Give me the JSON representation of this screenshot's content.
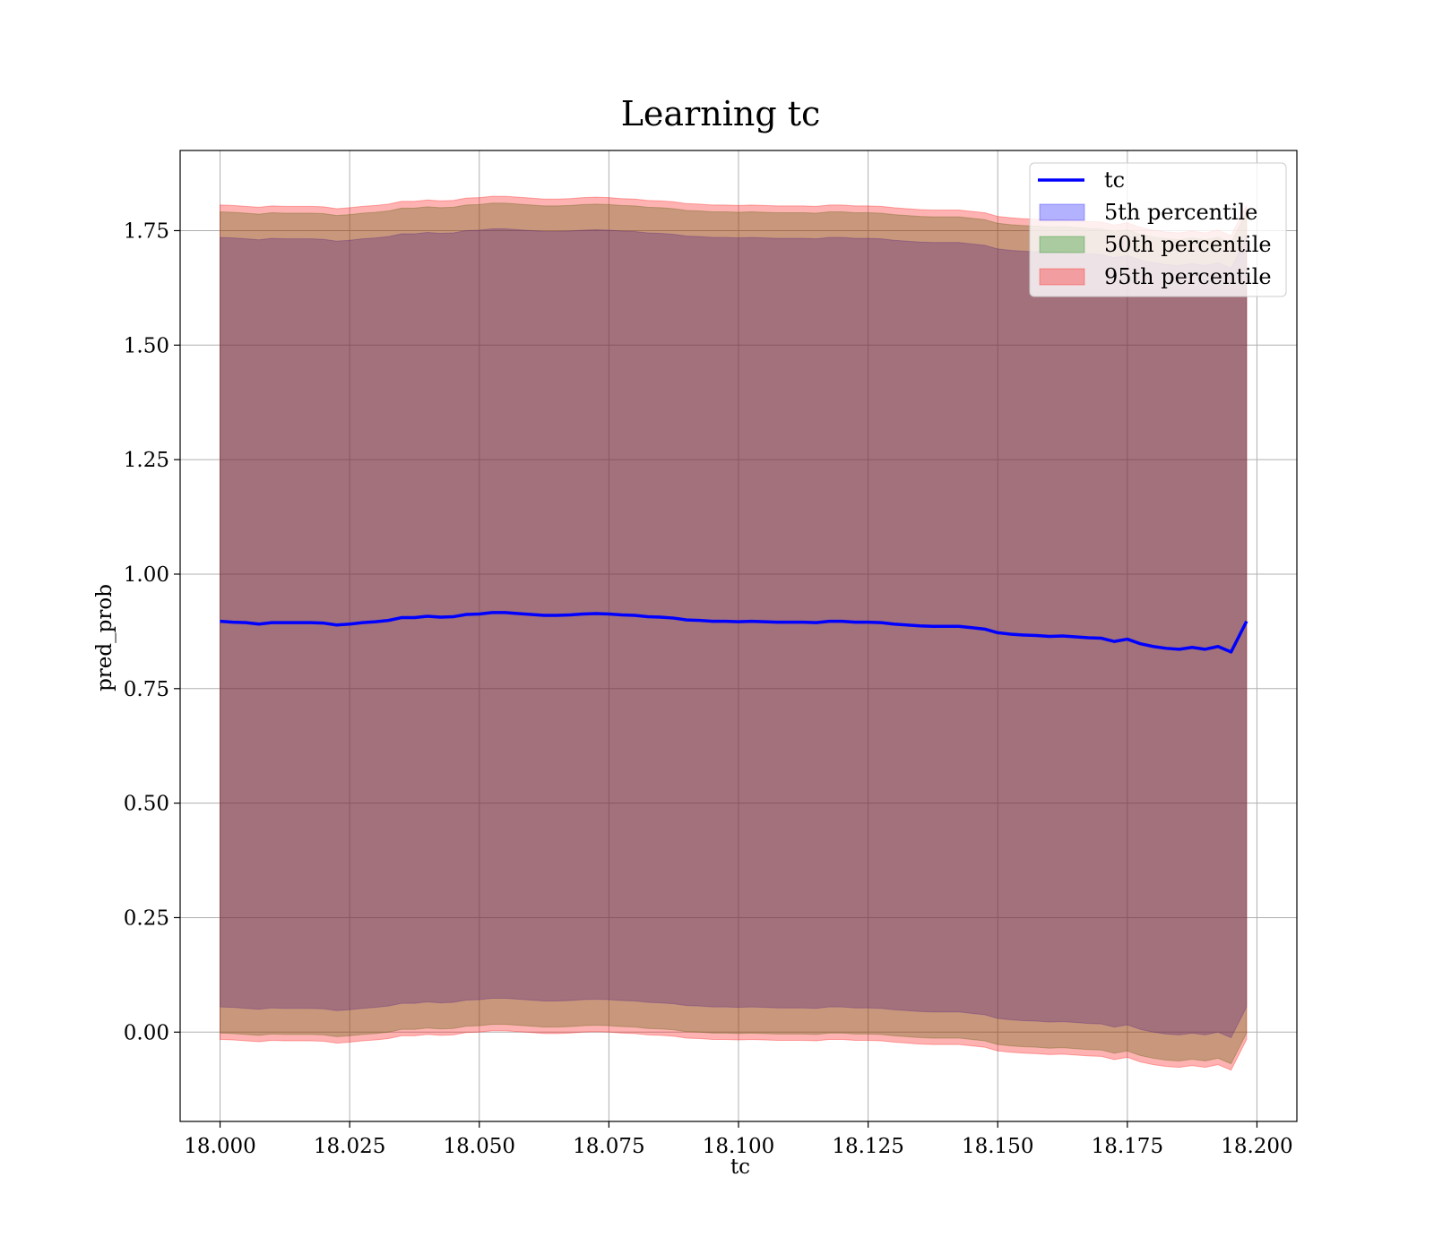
{
  "chart_data": {
    "type": "area",
    "title": "Learning tc",
    "xlabel": "tc",
    "ylabel": "pred_prob",
    "xlim": [
      17.9923,
      18.2077
    ],
    "ylim": [
      -0.195,
      1.925
    ],
    "grid": true,
    "legend_position": "top-right",
    "xticks": [
      "18.000",
      "18.025",
      "18.050",
      "18.075",
      "18.100",
      "18.125",
      "18.150",
      "18.175",
      "18.200"
    ],
    "xtick_values": [
      18.0,
      18.025,
      18.05,
      18.075,
      18.1,
      18.125,
      18.15,
      18.175,
      18.2
    ],
    "yticks": [
      "0.00",
      "0.25",
      "0.50",
      "0.75",
      "1.00",
      "1.25",
      "1.50",
      "1.75"
    ],
    "ytick_values": [
      0.0,
      0.25,
      0.5,
      0.75,
      1.0,
      1.25,
      1.5,
      1.75
    ],
    "colors": {
      "line": "#0000ff",
      "band_5": "#0000ff",
      "band_50": "#008000",
      "band_95": "#ff0000"
    },
    "line": {
      "name": "tc",
      "x": [
        18.0,
        18.0025,
        18.005,
        18.0075,
        18.01,
        18.0125,
        18.015,
        18.0175,
        18.02,
        18.0225,
        18.025,
        18.0275,
        18.03,
        18.0325,
        18.035,
        18.0375,
        18.04,
        18.0425,
        18.045,
        18.0475,
        18.05,
        18.0525,
        18.055,
        18.0575,
        18.06,
        18.0625,
        18.065,
        18.0675,
        18.07,
        18.0725,
        18.075,
        18.0775,
        18.08,
        18.0825,
        18.085,
        18.0875,
        18.09,
        18.0925,
        18.095,
        18.0975,
        18.1,
        18.1025,
        18.105,
        18.1075,
        18.11,
        18.1125,
        18.115,
        18.1175,
        18.12,
        18.1225,
        18.125,
        18.1275,
        18.13,
        18.1325,
        18.135,
        18.1375,
        18.14,
        18.1425,
        18.145,
        18.1475,
        18.15,
        18.1525,
        18.155,
        18.1575,
        18.16,
        18.1625,
        18.165,
        18.1675,
        18.17,
        18.1725,
        18.175,
        18.1775,
        18.18,
        18.1825,
        18.185,
        18.1875,
        18.19,
        18.1925,
        18.195,
        18.198
      ],
      "y": [
        0.897,
        0.895,
        0.894,
        0.891,
        0.894,
        0.894,
        0.894,
        0.894,
        0.893,
        0.889,
        0.891,
        0.894,
        0.896,
        0.899,
        0.905,
        0.905,
        0.908,
        0.906,
        0.907,
        0.912,
        0.913,
        0.916,
        0.916,
        0.914,
        0.912,
        0.91,
        0.91,
        0.911,
        0.913,
        0.914,
        0.913,
        0.911,
        0.91,
        0.907,
        0.906,
        0.904,
        0.9,
        0.899,
        0.897,
        0.897,
        0.896,
        0.897,
        0.896,
        0.895,
        0.895,
        0.895,
        0.894,
        0.897,
        0.897,
        0.895,
        0.895,
        0.894,
        0.891,
        0.889,
        0.887,
        0.886,
        0.886,
        0.886,
        0.883,
        0.88,
        0.872,
        0.869,
        0.867,
        0.866,
        0.864,
        0.865,
        0.863,
        0.861,
        0.86,
        0.853,
        0.858,
        0.848,
        0.842,
        0.838,
        0.836,
        0.84,
        0.836,
        0.842,
        0.83,
        0.897
      ]
    },
    "series": [
      {
        "name": "5th percentile",
        "lower": [
          0.055,
          0.054,
          0.052,
          0.05,
          0.053,
          0.052,
          0.052,
          0.052,
          0.051,
          0.047,
          0.049,
          0.052,
          0.054,
          0.057,
          0.063,
          0.063,
          0.066,
          0.064,
          0.065,
          0.07,
          0.071,
          0.074,
          0.074,
          0.072,
          0.07,
          0.068,
          0.068,
          0.069,
          0.071,
          0.072,
          0.071,
          0.069,
          0.068,
          0.065,
          0.064,
          0.062,
          0.058,
          0.057,
          0.055,
          0.055,
          0.054,
          0.055,
          0.054,
          0.053,
          0.053,
          0.053,
          0.052,
          0.055,
          0.055,
          0.053,
          0.053,
          0.052,
          0.049,
          0.047,
          0.045,
          0.044,
          0.044,
          0.044,
          0.041,
          0.038,
          0.03,
          0.027,
          0.025,
          0.024,
          0.022,
          0.023,
          0.021,
          0.019,
          0.018,
          0.011,
          0.016,
          0.006,
          0.0,
          -0.004,
          -0.006,
          -0.002,
          -0.006,
          0.0,
          -0.012,
          0.055
        ],
        "upper": [
          1.735,
          1.734,
          1.732,
          1.73,
          1.733,
          1.732,
          1.732,
          1.732,
          1.731,
          1.727,
          1.729,
          1.732,
          1.734,
          1.737,
          1.743,
          1.743,
          1.746,
          1.744,
          1.745,
          1.75,
          1.751,
          1.754,
          1.754,
          1.752,
          1.75,
          1.748,
          1.748,
          1.749,
          1.751,
          1.752,
          1.751,
          1.749,
          1.748,
          1.745,
          1.744,
          1.742,
          1.738,
          1.737,
          1.735,
          1.735,
          1.734,
          1.735,
          1.734,
          1.733,
          1.733,
          1.733,
          1.732,
          1.735,
          1.735,
          1.733,
          1.733,
          1.732,
          1.729,
          1.727,
          1.725,
          1.724,
          1.724,
          1.724,
          1.721,
          1.718,
          1.71,
          1.707,
          1.705,
          1.704,
          1.702,
          1.703,
          1.701,
          1.699,
          1.698,
          1.691,
          1.696,
          1.686,
          1.68,
          1.676,
          1.674,
          1.678,
          1.674,
          1.68,
          1.668,
          1.735
        ]
      },
      {
        "name": "50th percentile",
        "lower": [
          -0.002,
          -0.003,
          -0.005,
          -0.007,
          -0.004,
          -0.005,
          -0.005,
          -0.005,
          -0.006,
          -0.01,
          -0.008,
          -0.005,
          -0.003,
          0.0,
          0.006,
          0.006,
          0.009,
          0.007,
          0.008,
          0.013,
          0.014,
          0.017,
          0.017,
          0.015,
          0.013,
          0.011,
          0.011,
          0.012,
          0.014,
          0.015,
          0.014,
          0.012,
          0.011,
          0.008,
          0.007,
          0.005,
          0.001,
          0.0,
          -0.002,
          -0.002,
          -0.003,
          -0.002,
          -0.003,
          -0.004,
          -0.004,
          -0.004,
          -0.005,
          -0.002,
          -0.002,
          -0.004,
          -0.004,
          -0.005,
          -0.008,
          -0.01,
          -0.012,
          -0.013,
          -0.013,
          -0.013,
          -0.016,
          -0.019,
          -0.027,
          -0.03,
          -0.032,
          -0.033,
          -0.035,
          -0.034,
          -0.036,
          -0.038,
          -0.039,
          -0.046,
          -0.041,
          -0.051,
          -0.057,
          -0.061,
          -0.063,
          -0.059,
          -0.063,
          -0.057,
          -0.069,
          -0.002
        ],
        "upper": [
          1.791,
          1.79,
          1.788,
          1.786,
          1.789,
          1.788,
          1.788,
          1.788,
          1.787,
          1.783,
          1.785,
          1.788,
          1.79,
          1.793,
          1.799,
          1.799,
          1.802,
          1.8,
          1.801,
          1.806,
          1.807,
          1.81,
          1.81,
          1.808,
          1.806,
          1.804,
          1.804,
          1.805,
          1.807,
          1.808,
          1.807,
          1.805,
          1.804,
          1.801,
          1.8,
          1.798,
          1.794,
          1.793,
          1.791,
          1.791,
          1.79,
          1.791,
          1.79,
          1.789,
          1.789,
          1.789,
          1.788,
          1.791,
          1.791,
          1.789,
          1.789,
          1.788,
          1.785,
          1.783,
          1.781,
          1.78,
          1.78,
          1.78,
          1.777,
          1.774,
          1.766,
          1.763,
          1.761,
          1.76,
          1.758,
          1.759,
          1.757,
          1.755,
          1.754,
          1.747,
          1.752,
          1.742,
          1.736,
          1.732,
          1.73,
          1.734,
          1.73,
          1.736,
          1.724,
          1.791
        ]
      },
      {
        "name": "95th percentile",
        "lower": [
          -0.016,
          -0.017,
          -0.019,
          -0.021,
          -0.018,
          -0.019,
          -0.019,
          -0.019,
          -0.02,
          -0.024,
          -0.022,
          -0.019,
          -0.017,
          -0.014,
          -0.008,
          -0.008,
          -0.005,
          -0.007,
          -0.006,
          -0.001,
          0.0,
          0.003,
          0.003,
          0.001,
          -0.001,
          -0.003,
          -0.003,
          -0.002,
          0.0,
          0.001,
          0.0,
          -0.002,
          -0.003,
          -0.006,
          -0.007,
          -0.009,
          -0.013,
          -0.014,
          -0.016,
          -0.016,
          -0.017,
          -0.016,
          -0.017,
          -0.018,
          -0.018,
          -0.018,
          -0.019,
          -0.016,
          -0.016,
          -0.018,
          -0.018,
          -0.019,
          -0.022,
          -0.024,
          -0.026,
          -0.027,
          -0.027,
          -0.027,
          -0.03,
          -0.033,
          -0.041,
          -0.044,
          -0.046,
          -0.047,
          -0.049,
          -0.048,
          -0.05,
          -0.052,
          -0.053,
          -0.06,
          -0.055,
          -0.065,
          -0.071,
          -0.075,
          -0.077,
          -0.073,
          -0.077,
          -0.071,
          -0.083,
          -0.016
        ],
        "upper": [
          1.806,
          1.805,
          1.803,
          1.801,
          1.804,
          1.803,
          1.803,
          1.803,
          1.802,
          1.798,
          1.8,
          1.803,
          1.805,
          1.808,
          1.814,
          1.814,
          1.817,
          1.815,
          1.816,
          1.821,
          1.822,
          1.825,
          1.825,
          1.823,
          1.821,
          1.819,
          1.819,
          1.82,
          1.822,
          1.823,
          1.822,
          1.82,
          1.819,
          1.816,
          1.815,
          1.813,
          1.809,
          1.808,
          1.806,
          1.806,
          1.805,
          1.806,
          1.805,
          1.804,
          1.804,
          1.804,
          1.803,
          1.806,
          1.806,
          1.804,
          1.804,
          1.803,
          1.8,
          1.798,
          1.796,
          1.795,
          1.795,
          1.795,
          1.792,
          1.789,
          1.781,
          1.778,
          1.776,
          1.775,
          1.773,
          1.774,
          1.772,
          1.77,
          1.769,
          1.762,
          1.767,
          1.757,
          1.751,
          1.747,
          1.745,
          1.749,
          1.745,
          1.751,
          1.739,
          1.806
        ]
      }
    ],
    "legend": [
      "tc",
      "5th percentile",
      "50th percentile",
      "95th percentile"
    ]
  }
}
